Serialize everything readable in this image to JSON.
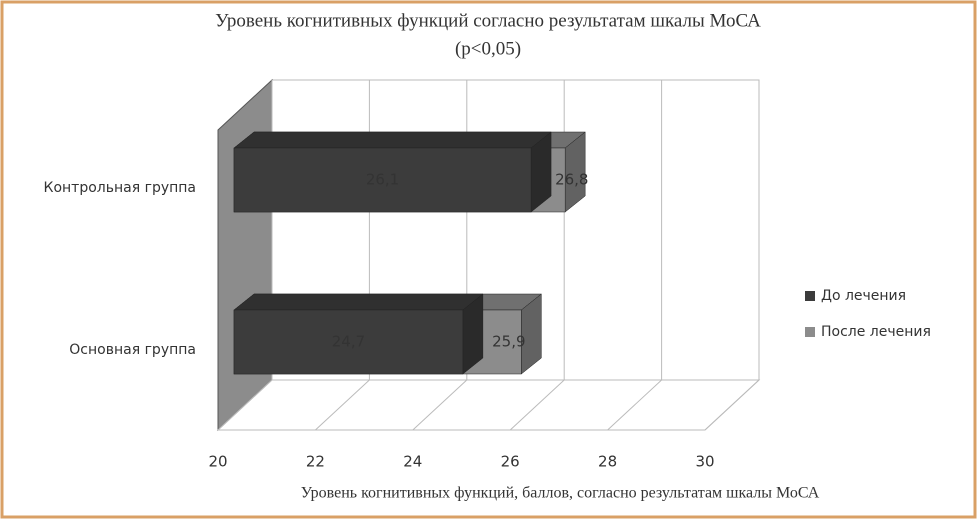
{
  "chart_data": {
    "type": "bar3d",
    "title": "Уровень когнитивных функций согласно результатам шкалы МоСА",
    "subtitle": "(p<0,05)",
    "x_label": "Уровень когнитивных функций, баллов, согласно результатам шкалы МоСА",
    "categories": [
      "Контрольная группа",
      "Основная группа"
    ],
    "series": [
      {
        "name": "До лечения",
        "color": "#3c3c3c",
        "values": [
          26.1,
          24.7
        ],
        "value_labels": [
          "26,1",
          "24,7"
        ]
      },
      {
        "name": "После лечения",
        "color": "#8c8c8c",
        "values": [
          26.8,
          25.9
        ],
        "value_labels": [
          "26,8",
          "25,9"
        ]
      }
    ],
    "xlim": [
      20,
      30
    ],
    "xticks": [
      20,
      22,
      24,
      26,
      28,
      30
    ],
    "grid": true,
    "legend": "right"
  }
}
